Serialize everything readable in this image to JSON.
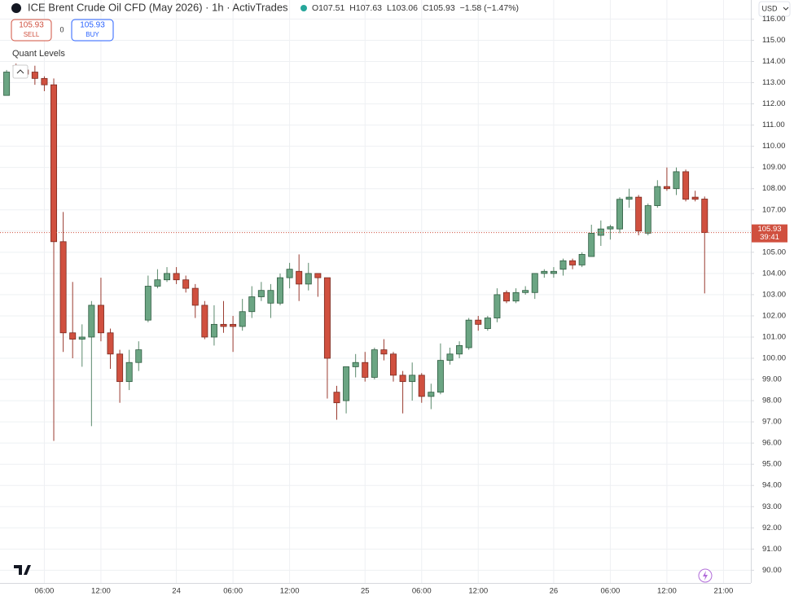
{
  "header": {
    "title": "ICE Brent Crude Oil CFD (May 2026) · 1h · ActivTrades",
    "ohlc": [
      "O107.51",
      "H107.63",
      "L103.06",
      "C105.93"
    ],
    "change": "−1.58 (−1.47%)"
  },
  "trade": {
    "sell_price": "105.93",
    "sell": "SELL",
    "spread": "0",
    "buy_price": "105.93",
    "buy": "BUY"
  },
  "indicator": "Quant Levels",
  "currency": "USD",
  "chart_data": {
    "type": "candlestick",
    "open": [
      112.4,
      113.8,
      113.6,
      113.5,
      113.2,
      112.9,
      105.5,
      101.2,
      100.9,
      101.0,
      102.5,
      101.2,
      100.2,
      98.9,
      99.8,
      101.8,
      103.4,
      103.7,
      104.0,
      103.7,
      103.3,
      102.5,
      101.0,
      101.6,
      101.6,
      101.5,
      102.2,
      102.9,
      102.6,
      102.6,
      103.8,
      104.1,
      103.5,
      104.0,
      103.8,
      98.4,
      98.0,
      99.6,
      99.8,
      99.1,
      100.4,
      100.2,
      99.2,
      98.9,
      99.2,
      98.2,
      98.4,
      99.9,
      100.2,
      100.5,
      101.8,
      101.4,
      101.9,
      103.1,
      102.7,
      103.1,
      103.1,
      104.0,
      104.0,
      104.2,
      104.6,
      104.4,
      104.8,
      105.8,
      106.1,
      106.1,
      107.5,
      107.6,
      105.9,
      107.2,
      108.1,
      108.0,
      108.8,
      107.6,
      107.51
    ],
    "high": [
      113.6,
      113.9,
      113.8,
      113.8,
      113.3,
      113.2,
      106.9,
      103.6,
      101.6,
      102.7,
      103.8,
      101.4,
      100.4,
      100.4,
      100.8,
      103.9,
      104.2,
      104.3,
      104.3,
      103.9,
      103.5,
      102.7,
      102.5,
      102.7,
      102.0,
      102.8,
      103.4,
      103.6,
      103.5,
      104.0,
      104.5,
      104.9,
      104.5,
      104.0,
      103.8,
      98.7,
      99.6,
      100.2,
      100.3,
      100.5,
      100.9,
      100.3,
      99.4,
      99.8,
      99.3,
      98.8,
      100.7,
      100.5,
      100.8,
      101.9,
      102.0,
      102.0,
      103.3,
      103.2,
      103.3,
      103.4,
      104.0,
      104.2,
      104.3,
      104.7,
      104.7,
      105.0,
      106.3,
      106.5,
      106.3,
      107.6,
      108.0,
      107.7,
      107.3,
      108.4,
      109.0,
      109.0,
      108.9,
      107.9,
      107.63
    ],
    "low": [
      112.4,
      113.4,
      113.3,
      112.9,
      112.6,
      96.1,
      100.3,
      100.0,
      99.6,
      96.8,
      100.8,
      99.5,
      97.9,
      98.5,
      99.4,
      101.7,
      103.3,
      103.6,
      103.5,
      103.1,
      101.9,
      100.9,
      100.6,
      101.2,
      100.3,
      101.3,
      101.9,
      102.7,
      101.9,
      102.5,
      103.3,
      102.7,
      103.2,
      102.9,
      98.1,
      97.1,
      97.4,
      99.1,
      98.9,
      99.0,
      99.9,
      98.9,
      97.4,
      98.0,
      97.9,
      97.6,
      98.3,
      99.7,
      100.0,
      100.4,
      101.3,
      101.3,
      101.7,
      102.6,
      102.6,
      103.0,
      102.8,
      103.8,
      103.8,
      103.9,
      104.2,
      104.3,
      104.8,
      105.3,
      105.6,
      105.9,
      107.1,
      105.8,
      105.8,
      107.1,
      107.9,
      107.7,
      107.4,
      107.4,
      103.06
    ],
    "close": [
      113.5,
      113.6,
      113.4,
      113.2,
      112.9,
      105.5,
      101.2,
      100.9,
      101.0,
      102.5,
      101.2,
      100.2,
      98.9,
      99.8,
      100.4,
      103.4,
      103.7,
      104.0,
      103.7,
      103.3,
      102.5,
      101.0,
      101.6,
      101.5,
      101.5,
      102.2,
      102.9,
      103.2,
      103.2,
      103.8,
      104.2,
      103.5,
      104.0,
      103.8,
      100.0,
      97.9,
      99.6,
      99.8,
      99.1,
      100.4,
      100.2,
      99.2,
      98.9,
      99.2,
      98.2,
      98.4,
      99.9,
      100.2,
      100.6,
      101.8,
      101.6,
      101.9,
      103.0,
      102.7,
      103.1,
      103.2,
      104.0,
      104.1,
      104.1,
      104.6,
      104.4,
      104.9,
      105.9,
      106.1,
      106.2,
      107.5,
      107.6,
      106.0,
      107.2,
      108.1,
      108.0,
      108.8,
      107.5,
      107.5,
      105.93
    ],
    "up_color": "#6ba583",
    "down_color": "#d0503f",
    "xlim": [
      -0.7,
      78.9
    ],
    "xticks": [
      {
        "value": 4,
        "label": "06:00"
      },
      {
        "value": 10,
        "label": "12:00"
      },
      {
        "value": 18,
        "label": "24"
      },
      {
        "value": 24,
        "label": "06:00"
      },
      {
        "value": 30,
        "label": "12:00"
      },
      {
        "value": 38,
        "label": "25"
      },
      {
        "value": 44,
        "label": "06:00"
      },
      {
        "value": 50,
        "label": "12:00"
      },
      {
        "value": 58,
        "label": "26"
      },
      {
        "value": 64,
        "label": "06:00"
      },
      {
        "value": 70,
        "label": "12:00"
      },
      {
        "value": 76,
        "label": "21:00"
      }
    ],
    "ylim": [
      89.4,
      116.9
    ],
    "yticks": [
      {
        "value": 90,
        "label": "90.00"
      },
      {
        "value": 91,
        "label": "91.00"
      },
      {
        "value": 92,
        "label": "92.00"
      },
      {
        "value": 93,
        "label": "93.00"
      },
      {
        "value": 94,
        "label": "94.00"
      },
      {
        "value": 95,
        "label": "95.00"
      },
      {
        "value": 96,
        "label": "96.00"
      },
      {
        "value": 97,
        "label": "97.00"
      },
      {
        "value": 98,
        "label": "98.00"
      },
      {
        "value": 99,
        "label": "99.00"
      },
      {
        "value": 100,
        "label": "100.00"
      },
      {
        "value": 101,
        "label": "101.00"
      },
      {
        "value": 102,
        "label": "102.00"
      },
      {
        "value": 103,
        "label": "103.00"
      },
      {
        "value": 104,
        "label": "104.00"
      },
      {
        "value": 105,
        "label": "105.00"
      },
      {
        "value": 106,
        "label": "106.00"
      },
      {
        "value": 107,
        "label": "107.00"
      },
      {
        "value": 108,
        "label": "108.00"
      },
      {
        "value": 109,
        "label": "109.00"
      },
      {
        "value": 110,
        "label": "110.00"
      },
      {
        "value": 111,
        "label": "111.00"
      },
      {
        "value": 112,
        "label": "112.00"
      },
      {
        "value": 113,
        "label": "113.00"
      },
      {
        "value": 114,
        "label": "114.00"
      },
      {
        "value": 115,
        "label": "115.00"
      },
      {
        "value": 116,
        "label": "116.00"
      }
    ],
    "grid": true,
    "countdown": "39:41"
  }
}
